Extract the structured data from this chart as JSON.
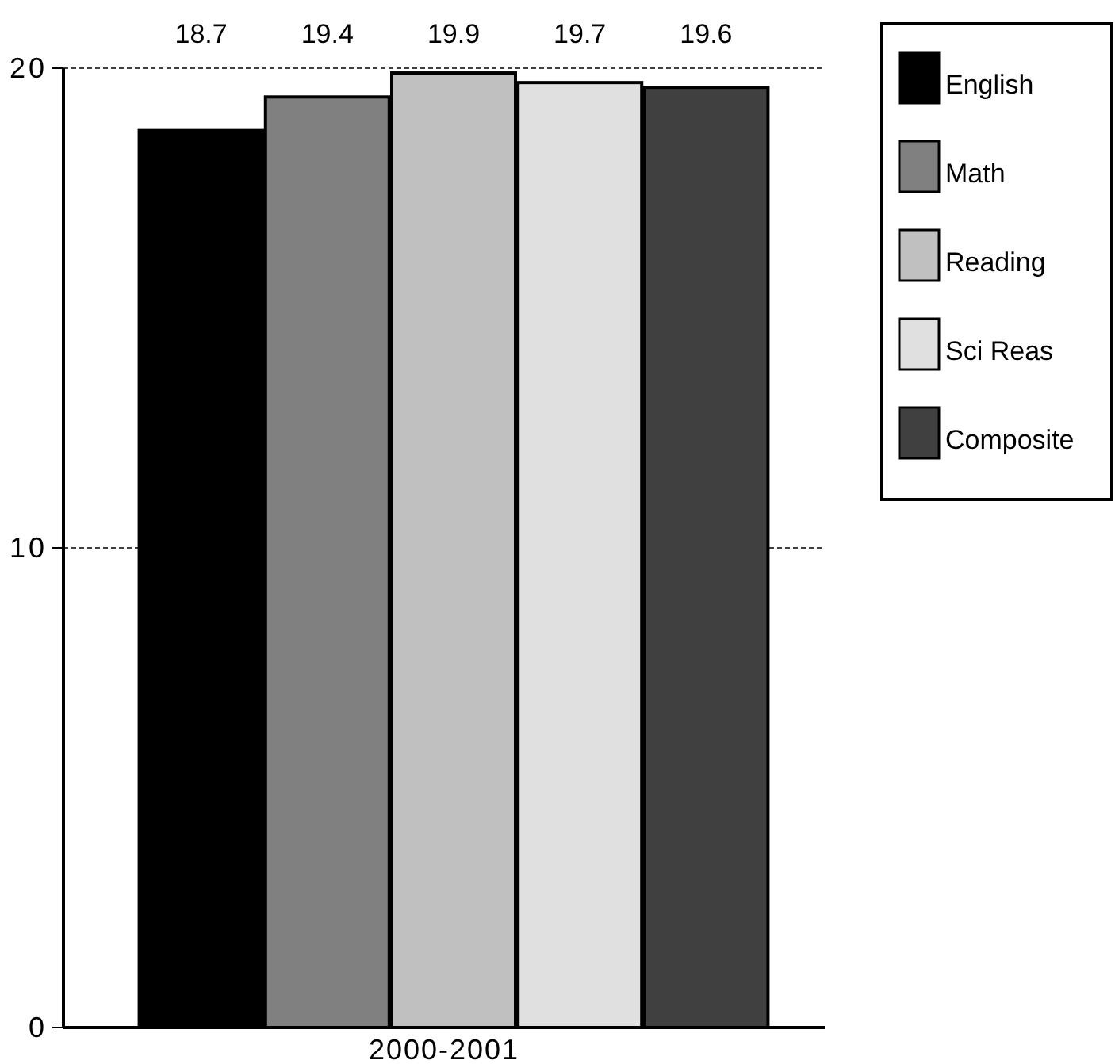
{
  "chart_data": {
    "type": "bar",
    "xlabel": "2000-2001",
    "categories": [
      null
    ],
    "series": [
      {
        "name": "English",
        "color": "#000000",
        "values": [
          18.7
        ]
      },
      {
        "name": "Math",
        "color": "#808080",
        "values": [
          19.4
        ]
      },
      {
        "name": "Reading",
        "color": "#c0c0c0",
        "values": [
          19.9
        ]
      },
      {
        "name": "Sci Reas",
        "color": "#e0e0e0",
        "values": [
          19.7
        ]
      },
      {
        "name": "Composite",
        "color": "#404040",
        "values": [
          19.6
        ]
      }
    ],
    "ylim": [
      0,
      20
    ],
    "yticks": [
      0,
      10,
      20
    ],
    "grid": "y",
    "legend": "top right",
    "data_labels": true
  }
}
